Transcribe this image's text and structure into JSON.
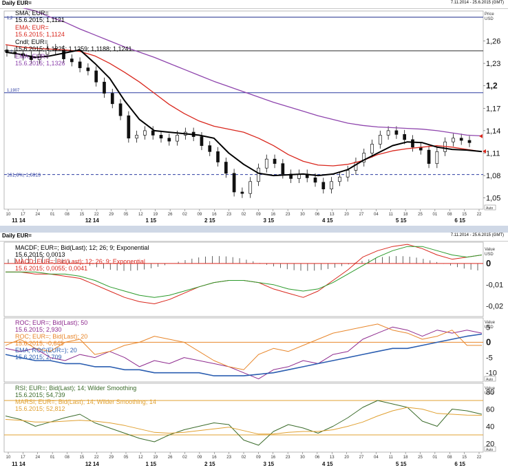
{
  "top": {
    "title": "Daily EUR=",
    "date_range": "7.11.2014 - 25.6.2015 (GMT)",
    "axis_unit_1": "Price",
    "axis_unit_2": "USD",
    "auto_label": "Auto",
    "legend": [
      {
        "line1": "SMA; EUR=",
        "line2": "15.6.2015; 1,1121",
        "color": "#000000"
      },
      {
        "line1": "EMA; EUR=",
        "line2": "15.6.2015; 1,1124",
        "color": "#d9261c"
      },
      {
        "line1": "Cndl; EUR=",
        "line2": "15.6.2015; 1,1225; 1,1259; 1,1188; 1,1241",
        "color": "#000000"
      },
      {
        "line1": "EMA; EUR=",
        "line2": "15.6.2015; 1,1326",
        "color": "#8e44ad"
      }
    ],
    "left_labels": {
      "a": "1,2",
      "b": "1,2",
      "c": "1,1907",
      "d": "161,8%; 1,0813"
    }
  },
  "bottom": {
    "title": "Daily EUR=",
    "date_range": "7.11.2014 - 25.6.2015 (GMT)",
    "axis_unit_1": "Value",
    "axis_unit_2": "USD",
    "auto_label": "Auto",
    "macd_legend": [
      {
        "line1": "MACDF; EUR=; Bid(Last); 12; 26; 9; Exponential",
        "line2": "15.6.2015; 0,0013",
        "color": "#000000"
      },
      {
        "line1": "MACD; EUR=; Bid(Last); 12; 26; 9; Exponential",
        "line2": "15.6.2015; 0,0055; 0,0041",
        "color": "#d9261c"
      }
    ],
    "roc_legend": [
      {
        "line1": "ROC; EUR=; Bid(Last); 50",
        "line2": "15.6.2015; 2,930",
        "color": "#8e2a8e"
      },
      {
        "line1": "ROC; EUR=; Bid(Last); 20",
        "line2": "15.6.2015; -0,645",
        "color": "#e8862a"
      },
      {
        "line1": "EMA; ROC(EUR=); 20",
        "line2": "15.6.2015; 2,709",
        "color": "#2a5db0"
      }
    ],
    "rsi_legend": [
      {
        "line1": "RSI; EUR=; Bid(Last); 14; Wilder Smoothing",
        "line2": "15.6.2015; 54,739",
        "color": "#3a6b2a"
      },
      {
        "line1": "MARSI; EUR=; Bid(Last); 14; Wilder Smoothing; 14",
        "line2": "15.6.2015; 52,812",
        "color": "#e0a030"
      }
    ]
  },
  "chart_data": [
    {
      "type": "line",
      "panel": "price",
      "title": "Daily EUR=",
      "ylabel": "Price USD",
      "ylim": [
        1.035,
        1.3
      ],
      "yticks": [
        "1,05",
        "1,08",
        "1,11",
        "1,14",
        "1,17",
        "1,2",
        "1,23",
        "1,26"
      ],
      "ytick_values": [
        1.05,
        1.08,
        1.11,
        1.14,
        1.17,
        1.2,
        1.23,
        1.26
      ],
      "day_ticks": [
        "10",
        "17",
        "24",
        "01",
        "08",
        "15",
        "22",
        "29",
        "05",
        "12",
        "19",
        "26",
        "02",
        "09",
        "16",
        "23",
        "02",
        "09",
        "16",
        "23",
        "30",
        "06",
        "13",
        "20",
        "27",
        "04",
        "11",
        "18",
        "25",
        "01",
        "08",
        "15",
        "22"
      ],
      "month_ticks": [
        "11 14",
        "12 14",
        "1 15",
        "2 15",
        "3 15",
        "4 15",
        "5 15",
        "6 15"
      ],
      "hlines": [
        1.2917,
        1.2467,
        1.1907,
        1.0813
      ],
      "right_markers": [
        1.1326,
        1.1124
      ],
      "series": [
        {
          "name": "EMA",
          "color": "#8e44ad",
          "values": [
            1.31,
            1.305,
            1.3,
            1.292,
            1.285,
            1.276,
            1.268,
            1.26,
            1.252,
            1.245,
            1.238,
            1.23,
            1.222,
            1.214,
            1.206,
            1.199,
            1.192,
            1.185,
            1.178,
            1.172,
            1.166,
            1.16,
            1.155,
            1.15,
            1.147,
            1.145,
            1.144,
            1.143,
            1.142,
            1.14,
            1.137,
            1.134,
            1.133
          ]
        },
        {
          "name": "EMA",
          "color": "#d9261c",
          "values": [
            1.255,
            1.252,
            1.25,
            1.249,
            1.248,
            1.246,
            1.24,
            1.23,
            1.218,
            1.205,
            1.19,
            1.175,
            1.163,
            1.153,
            1.146,
            1.142,
            1.138,
            1.13,
            1.12,
            1.108,
            1.099,
            1.094,
            1.093,
            1.095,
            1.1,
            1.108,
            1.113,
            1.116,
            1.118,
            1.12,
            1.118,
            1.115,
            1.112
          ]
        },
        {
          "name": "SMA",
          "color": "#000000",
          "values": [
            1.245,
            1.242,
            1.238,
            1.24,
            1.244,
            1.248,
            1.23,
            1.21,
            1.18,
            1.155,
            1.14,
            1.138,
            1.136,
            1.134,
            1.13,
            1.11,
            1.095,
            1.083,
            1.08,
            1.081,
            1.082,
            1.08,
            1.082,
            1.088,
            1.1,
            1.11,
            1.12,
            1.125,
            1.124,
            1.118,
            1.115,
            1.114,
            1.112
          ]
        }
      ],
      "candles_close": [
        1.245,
        1.243,
        1.24,
        1.235,
        1.242,
        1.25,
        1.248,
        1.236,
        1.232,
        1.224,
        1.22,
        1.205,
        1.19,
        1.176,
        1.16,
        1.13,
        1.134,
        1.14,
        1.134,
        1.13,
        1.126,
        1.134,
        1.138,
        1.132,
        1.12,
        1.112,
        1.098,
        1.083,
        1.058,
        1.056,
        1.072,
        1.09,
        1.102,
        1.096,
        1.082,
        1.076,
        1.082,
        1.077,
        1.071,
        1.062,
        1.072,
        1.078,
        1.087,
        1.098,
        1.11,
        1.122,
        1.134,
        1.14,
        1.135,
        1.128,
        1.118,
        1.114,
        1.096,
        1.112,
        1.125,
        1.13,
        1.127,
        1.124
      ]
    },
    {
      "type": "line",
      "panel": "macd",
      "ylim": [
        -0.025,
        0.01
      ],
      "yticks": [
        "0",
        "-0,01",
        "-0,02"
      ],
      "ytick_values": [
        0,
        -0.01,
        -0.02
      ],
      "series": [
        {
          "name": "MACD",
          "color": "#d9261c",
          "values": [
            -0.004,
            -0.004,
            -0.005,
            -0.005,
            -0.006,
            -0.007,
            -0.01,
            -0.013,
            -0.016,
            -0.018,
            -0.019,
            -0.017,
            -0.014,
            -0.011,
            -0.009,
            -0.008,
            -0.008,
            -0.009,
            -0.012,
            -0.014,
            -0.016,
            -0.013,
            -0.008,
            -0.003,
            0.003,
            0.006,
            0.008,
            0.009,
            0.007,
            0.004,
            0.002,
            0.003,
            0.004
          ]
        },
        {
          "color": "#2a9a2a",
          "values": [
            -0.004,
            -0.004,
            -0.004,
            -0.005,
            -0.005,
            -0.006,
            -0.008,
            -0.011,
            -0.013,
            -0.015,
            -0.016,
            -0.015,
            -0.013,
            -0.011,
            -0.009,
            -0.008,
            -0.008,
            -0.009,
            -0.01,
            -0.012,
            -0.013,
            -0.012,
            -0.009,
            -0.005,
            -0.001,
            0.003,
            0.006,
            0.008,
            0.008,
            0.006,
            0.004,
            0.003,
            0.004
          ]
        }
      ]
    },
    {
      "type": "line",
      "panel": "roc",
      "ylim": [
        -13,
        8
      ],
      "yticks": [
        "5",
        "0",
        "-5",
        "-10"
      ],
      "ytick_values": [
        5,
        0,
        -5,
        -10
      ],
      "series": [
        {
          "name": "ROC",
          "color": "#8e2a8e",
          "values": [
            -2,
            -3,
            -2,
            -5,
            -6,
            -4,
            -5,
            -3,
            -5,
            -8,
            -6,
            -7,
            -5,
            -6,
            -7,
            -8,
            -10,
            -12,
            -9,
            -8,
            -6,
            -7,
            -4,
            -3,
            1,
            3,
            5,
            4,
            2,
            4,
            3,
            4,
            3
          ]
        },
        {
          "name": "ROC",
          "color": "#e8862a",
          "values": [
            -1,
            1,
            -2,
            -3,
            0,
            1,
            -4,
            -3,
            -1,
            0,
            2,
            1,
            0,
            -3,
            -6,
            -8,
            -9,
            -4,
            -2,
            -3,
            -1,
            1,
            3,
            4,
            5,
            6,
            4,
            3,
            1,
            2,
            4,
            -1,
            -1
          ]
        },
        {
          "name": "EMA",
          "color": "#2a5db0",
          "values": [
            -4,
            -5,
            -6,
            -6,
            -7,
            -7,
            -8,
            -8,
            -9,
            -9,
            -10,
            -10,
            -10,
            -10,
            -11,
            -11,
            -11,
            -10.5,
            -10,
            -9,
            -8,
            -7,
            -6,
            -5,
            -4,
            -3,
            -2,
            -2,
            -1,
            0,
            1,
            2,
            2.7
          ]
        }
      ]
    },
    {
      "type": "line",
      "panel": "rsi",
      "ylim": [
        10,
        90
      ],
      "yticks": [
        "80",
        "60",
        "40",
        "20"
      ],
      "ytick_values": [
        80,
        60,
        40,
        20
      ],
      "hlines": [
        70,
        30
      ],
      "series": [
        {
          "name": "RSI",
          "color": "#3a6b2a",
          "values": [
            52,
            48,
            40,
            45,
            50,
            54,
            44,
            38,
            32,
            26,
            22,
            30,
            36,
            40,
            44,
            42,
            24,
            18,
            34,
            42,
            38,
            32,
            40,
            50,
            62,
            70,
            66,
            62,
            46,
            40,
            60,
            58,
            54
          ]
        },
        {
          "name": "MARSI",
          "color": "#e0a030",
          "values": [
            48,
            47,
            45,
            45,
            46,
            47,
            46,
            44,
            41,
            37,
            33,
            32,
            33,
            35,
            37,
            39,
            35,
            31,
            31,
            33,
            34,
            34,
            36,
            40,
            45,
            52,
            58,
            62,
            60,
            55,
            54,
            53,
            52.8
          ]
        }
      ]
    }
  ]
}
